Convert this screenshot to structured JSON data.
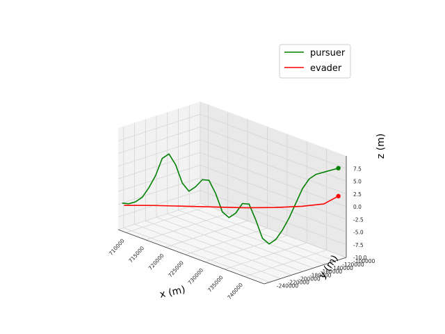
{
  "chart_data": {
    "type": "line",
    "projection": "3d",
    "title": "",
    "xlabel": "x (m)",
    "ylabel": "y (m)",
    "zlabel": "z (m)",
    "xlim": [
      708000,
      745000
    ],
    "ylim": [
      -250000,
      -100000
    ],
    "zlim": [
      -10,
      10
    ],
    "x_ticks": [
      "710000",
      "715000",
      "720000",
      "725000",
      "730000",
      "735000",
      "740000"
    ],
    "y_ticks": [
      "-100000",
      "-120000",
      "-140000",
      "-160000",
      "-180000",
      "-200000",
      "-220000",
      "-240000"
    ],
    "z_ticks": [
      "-10.0",
      "-7.5",
      "-5.0",
      "-2.5",
      "0.0",
      "2.5",
      "5.0",
      "7.5"
    ],
    "grid": true,
    "legend": "top-right",
    "series": [
      {
        "name": "pursuer",
        "color": "#008000",
        "x": [
          709000,
          710000,
          711000,
          712000,
          713000,
          714000,
          715000,
          716000,
          717000,
          718000,
          719000,
          720000,
          721000,
          722000,
          723000,
          724000,
          725000,
          726000,
          727000,
          728000,
          729000,
          730000,
          731000,
          732000,
          733000,
          734000,
          735000,
          736000,
          737000,
          738000,
          739000,
          740000,
          741000,
          742000,
          743000
        ],
        "y": [
          -250000,
          -245000,
          -240000,
          -235000,
          -230000,
          -225000,
          -220000,
          -215000,
          -210000,
          -205000,
          -200000,
          -195000,
          -190000,
          -185000,
          -180000,
          -175000,
          -170000,
          -165000,
          -160000,
          -155000,
          -150000,
          -145000,
          -140000,
          -135000,
          -130000,
          -125000,
          -120000,
          -115000,
          -110000,
          -105000,
          -102000,
          -101000,
          -100000,
          -100000,
          -100000
        ],
        "z": [
          -4.5,
          -4.5,
          -4.0,
          -3.0,
          -1.0,
          1.5,
          5.0,
          6.0,
          4.0,
          0.5,
          -1.0,
          0.0,
          1.5,
          1.5,
          -1.0,
          -4.5,
          -5.5,
          -4.5,
          -2.5,
          -2.5,
          -5.5,
          -9.0,
          -10.0,
          -9.0,
          -7.0,
          -4.5,
          -1.5,
          1.5,
          3.5,
          4.5,
          5.0,
          5.5,
          6.0,
          6.5,
          7.0
        ],
        "end_marker": true
      },
      {
        "name": "evader",
        "color": "#ff0000",
        "x": [
          709500,
          714000,
          719000,
          724000,
          729000,
          734000,
          738000,
          741000,
          743000
        ],
        "y": [
          -250000,
          -230000,
          -210000,
          -190000,
          -170000,
          -150000,
          -130000,
          -112000,
          -100000
        ],
        "z": [
          -4.8,
          -4.2,
          -3.6,
          -3.0,
          -2.4,
          -1.6,
          -0.9,
          -0.2,
          1.5
        ],
        "end_marker": true
      }
    ]
  }
}
